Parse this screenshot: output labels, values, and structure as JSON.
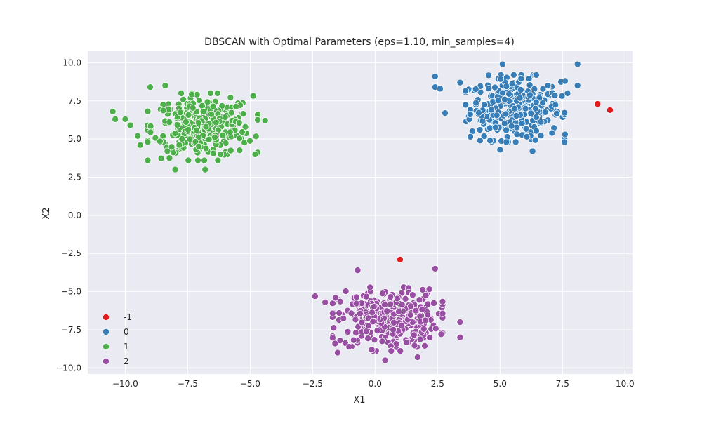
{
  "chart_data": {
    "type": "scatter",
    "title": "DBSCAN with Optimal Parameters (eps=1.10, min_samples=4)",
    "xlabel": "X1",
    "ylabel": "X2",
    "xlim": [
      -11.5,
      10.3
    ],
    "ylim": [
      -10.4,
      10.8
    ],
    "xticks": [
      "−10.0",
      "−7.5",
      "−5.0",
      "−2.5",
      "0.0",
      "2.5",
      "5.0",
      "7.5",
      "10.0"
    ],
    "yticks": [
      "10.0",
      "7.5",
      "5.0",
      "2.5",
      "0.0",
      "−2.5",
      "−5.0",
      "−7.5",
      "−10.0"
    ],
    "grid": true,
    "legend_position": "lower-left",
    "series": [
      {
        "name": "-1",
        "color": "#e41a1c",
        "points": [
          [
            8.9,
            7.3
          ],
          [
            9.4,
            6.9
          ],
          [
            1.0,
            -2.9
          ]
        ]
      },
      {
        "name": "0",
        "color": "#377eb8",
        "center": [
          5.6,
          7.0
        ],
        "spread": [
          0.9,
          1.0
        ],
        "count": 330,
        "outliers": [
          [
            2.4,
            9.1
          ],
          [
            2.4,
            8.4
          ],
          [
            2.6,
            8.3
          ],
          [
            2.8,
            6.7
          ],
          [
            3.4,
            8.7
          ],
          [
            4.2,
            4.9
          ],
          [
            4.6,
            4.9
          ],
          [
            5.0,
            4.3
          ],
          [
            6.3,
            4.2
          ],
          [
            7.6,
            5.3
          ],
          [
            7.7,
            8.0
          ],
          [
            8.1,
            9.9
          ],
          [
            8.1,
            8.5
          ],
          [
            7.6,
            8.8
          ],
          [
            5.1,
            9.9
          ]
        ]
      },
      {
        "name": "1",
        "color": "#4daf4a",
        "center": [
          -6.9,
          5.8
        ],
        "spread": [
          1.0,
          1.0
        ],
        "count": 330,
        "outliers": [
          [
            -10.5,
            6.8
          ],
          [
            -10.4,
            6.3
          ],
          [
            -10.0,
            6.3
          ],
          [
            -9.8,
            5.9
          ],
          [
            -9.5,
            5.2
          ],
          [
            -9.4,
            4.6
          ],
          [
            -9.0,
            8.4
          ],
          [
            -4.4,
            6.2
          ],
          [
            -4.8,
            4.0
          ],
          [
            -6.8,
            3.0
          ],
          [
            -8.0,
            3.0
          ],
          [
            -8.4,
            8.5
          ]
        ]
      },
      {
        "name": "2",
        "color": "#984ea3",
        "center": [
          0.5,
          -6.8
        ],
        "spread": [
          1.0,
          0.95
        ],
        "count": 330,
        "outliers": [
          [
            -2.4,
            -5.3
          ],
          [
            -2.0,
            -5.7
          ],
          [
            -0.7,
            -3.6
          ],
          [
            2.4,
            -3.5
          ],
          [
            3.4,
            -7.0
          ],
          [
            3.4,
            -8.0
          ],
          [
            0.4,
            -9.5
          ],
          [
            1.7,
            -9.3
          ],
          [
            -1.5,
            -9.0
          ],
          [
            -1.6,
            -8.4
          ]
        ]
      }
    ]
  }
}
